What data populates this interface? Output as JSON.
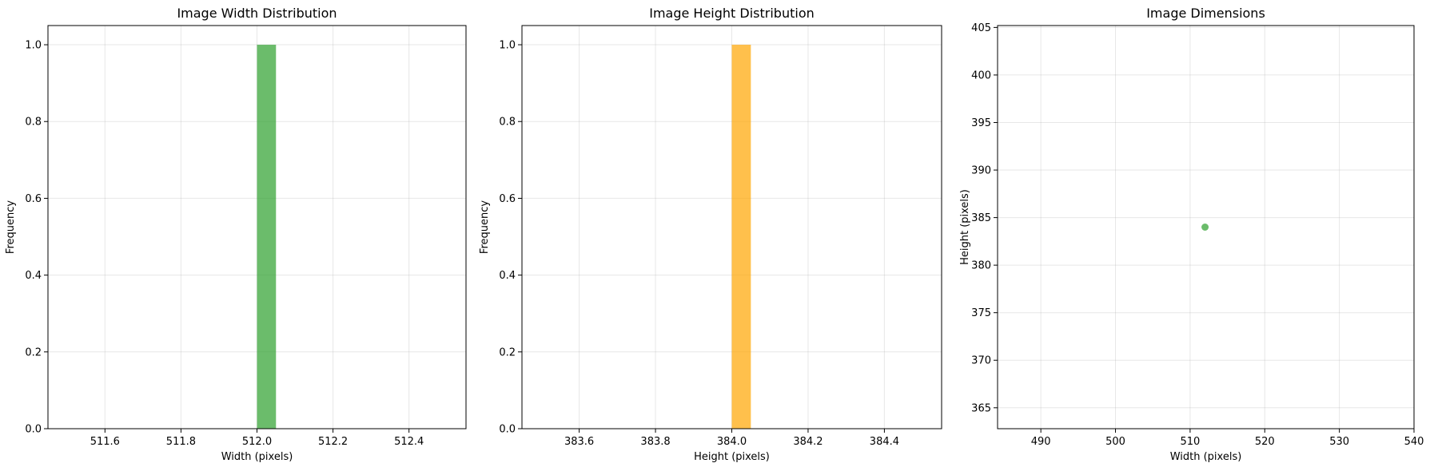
{
  "chart_data": [
    {
      "type": "bar",
      "title": "Image Width Distribution",
      "xlabel": "Width (pixels)",
      "ylabel": "Frequency",
      "xlim": [
        511.45,
        512.55
      ],
      "ylim": [
        0,
        1.05
      ],
      "xticks": [
        511.6,
        511.8,
        512.0,
        512.2,
        512.4
      ],
      "xtick_labels": [
        "511.6",
        "511.8",
        "512.0",
        "512.2",
        "512.4"
      ],
      "yticks": [
        0,
        0.2,
        0.4,
        0.6,
        0.8,
        1.0
      ],
      "ytick_labels": [
        "0.0",
        "0.2",
        "0.4",
        "0.6",
        "0.8",
        "1.0"
      ],
      "bars": [
        {
          "x0": 512.0,
          "x1": 512.05,
          "value": 1.0
        }
      ],
      "color": "#2ca02c",
      "grid": true
    },
    {
      "type": "bar",
      "title": "Image Height Distribution",
      "xlabel": "Height (pixels)",
      "ylabel": "Frequency",
      "xlim": [
        383.45,
        384.55
      ],
      "ylim": [
        0,
        1.05
      ],
      "xticks": [
        383.6,
        383.8,
        384.0,
        384.2,
        384.4
      ],
      "xtick_labels": [
        "383.6",
        "383.8",
        "384.0",
        "384.2",
        "384.4"
      ],
      "yticks": [
        0,
        0.2,
        0.4,
        0.6,
        0.8,
        1.0
      ],
      "ytick_labels": [
        "0.0",
        "0.2",
        "0.4",
        "0.6",
        "0.8",
        "1.0"
      ],
      "bars": [
        {
          "x0": 384.0,
          "x1": 384.05,
          "value": 1.0
        }
      ],
      "color": "#ffa500",
      "grid": true
    },
    {
      "type": "scatter",
      "title": "Image Dimensions",
      "xlabel": "Width (pixels)",
      "ylabel": "Height (pixels)",
      "xlim": [
        484.2,
        540.0
      ],
      "ylim": [
        362.8,
        405.2
      ],
      "xticks": [
        490,
        500,
        510,
        520,
        530,
        540
      ],
      "xtick_labels": [
        "490",
        "500",
        "510",
        "520",
        "530",
        "540"
      ],
      "yticks": [
        365,
        370,
        375,
        380,
        385,
        390,
        395,
        400,
        405
      ],
      "ytick_labels": [
        "365",
        "370",
        "375",
        "380",
        "385",
        "390",
        "395",
        "400",
        "405"
      ],
      "points": [
        {
          "x": 512,
          "y": 384
        }
      ],
      "color": "#2ca02c",
      "grid": true
    }
  ]
}
